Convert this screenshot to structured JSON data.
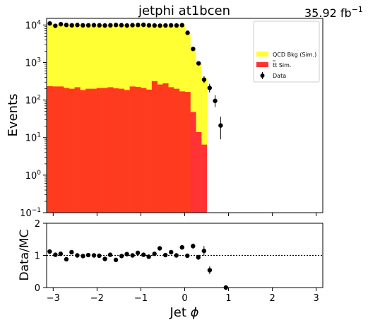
{
  "title": "jetphi  at1bcen",
  "lumi_label": "35.92 fb",
  "lumi_exp": "−1",
  "chart_data": [
    {
      "type": "bar",
      "subtype": "stacked-histogram",
      "ylabel": "Events",
      "yscale": "log",
      "xlim": [
        -3.15,
        3.15
      ],
      "ylim": [
        0.1,
        15000
      ],
      "x_ticks": [
        "−3",
        "−2",
        "−1",
        "0",
        "1",
        "2",
        "3"
      ],
      "y_ticks": [
        {
          "base": "10",
          "exp": "−1",
          "value": 0.1
        },
        {
          "base": "10",
          "exp": "0",
          "value": 1
        },
        {
          "base": "10",
          "exp": "1",
          "value": 10
        },
        {
          "base": "10",
          "exp": "2",
          "value": 100
        },
        {
          "base": "10",
          "exp": "3",
          "value": 1000
        },
        {
          "base": "10",
          "exp": "4",
          "value": 10000
        }
      ],
      "bin_start": -3.14,
      "bin_width": 0.1257,
      "legend": {
        "placement": "top-right",
        "entries": [
          {
            "key": "qcd",
            "label": "QCD Bkg (Sim.)",
            "color": "#ffff33"
          },
          {
            "key": "ttbar",
            "label_top": "t",
            "label_rest": "t Sim.",
            "color": "#ff3333"
          },
          {
            "key": "data",
            "label": "Data",
            "color": "#000000"
          }
        ]
      },
      "series": [
        {
          "key": "ttbar",
          "name": "t t Sim.",
          "color": "#ff3b1f",
          "values": [
            235,
            230,
            230,
            210,
            200,
            220,
            185,
            200,
            200,
            210,
            210,
            220,
            205,
            200,
            185,
            230,
            225,
            210,
            190,
            320,
            260,
            280,
            220,
            200,
            170,
            165,
            48,
            14,
            6.5,
            0,
            0,
            0,
            0,
            0,
            0,
            0,
            0,
            0,
            0,
            0,
            0,
            0,
            0,
            0,
            0,
            0,
            0,
            0,
            0,
            0
          ]
        },
        {
          "key": "qcd_total",
          "name": "QCD Bkg (Sim.)",
          "color": "#ffff33",
          "values": [
            10500,
            10400,
            10500,
            10400,
            10400,
            10400,
            10300,
            10300,
            10200,
            10200,
            10200,
            10400,
            10300,
            10300,
            10200,
            10200,
            10300,
            10200,
            10100,
            10200,
            10100,
            10000,
            10000,
            10000,
            10000,
            6000,
            2300,
            950,
            380,
            0,
            0,
            0,
            0,
            0,
            0,
            0,
            0,
            0,
            0,
            0,
            0,
            0,
            0,
            0,
            0,
            0,
            0,
            0,
            0,
            0
          ]
        },
        {
          "key": "data",
          "name": "Data",
          "color": "#000000",
          "values": [
            11000,
            9500,
            10500,
            10000,
            9800,
            10000,
            9800,
            9800,
            9900,
            9800,
            9700,
            9800,
            10000,
            9900,
            9700,
            9900,
            10000,
            10100,
            9800,
            9700,
            9600,
            9700,
            9800,
            9700,
            9900,
            6200,
            2300,
            950,
            350,
            210,
            95,
            21
          ],
          "errors_up": [
            0,
            0,
            0,
            0,
            0,
            0,
            0,
            0,
            0,
            0,
            0,
            0,
            0,
            0,
            0,
            0,
            0,
            0,
            0,
            0,
            0,
            0,
            0,
            0,
            0,
            0,
            0,
            0,
            80,
            60,
            40,
            15
          ],
          "errors_down": [
            0,
            0,
            0,
            0,
            0,
            0,
            0,
            0,
            0,
            0,
            0,
            0,
            0,
            0,
            0,
            0,
            0,
            0,
            0,
            0,
            0,
            0,
            0,
            0,
            0,
            0,
            0,
            0,
            70,
            50,
            30,
            12
          ]
        }
      ]
    },
    {
      "type": "scatter",
      "xlabel_main": "Jet ",
      "xlabel_sym": "ϕ",
      "ylabel": "Data/MC",
      "xlim": [
        -3.15,
        3.15
      ],
      "ylim": [
        0,
        2
      ],
      "y_ticks": [
        "0",
        "1",
        "2"
      ],
      "x_ticks": [
        "−3",
        "−2",
        "−1",
        "0",
        "1",
        "2",
        "3"
      ],
      "reference_line": 1,
      "x": [
        -3.08,
        -2.95,
        -2.83,
        -2.7,
        -2.58,
        -2.45,
        -2.32,
        -2.2,
        -2.07,
        -1.95,
        -1.82,
        -1.7,
        -1.57,
        -1.44,
        -1.32,
        -1.19,
        -1.07,
        -0.94,
        -0.82,
        -0.69,
        -0.57,
        -0.44,
        -0.31,
        -0.19,
        -0.06,
        0.06,
        0.19,
        0.31,
        0.44,
        0.57,
        0.94
      ],
      "values": [
        1.12,
        1.02,
        1.05,
        0.88,
        1.1,
        1.0,
        0.98,
        1.01,
        1.0,
        0.99,
        0.89,
        1.02,
        0.86,
        0.98,
        1.04,
        1.0,
        1.08,
        1.02,
        0.96,
        1.05,
        1.22,
        1.01,
        1.1,
        1.0,
        1.25,
        0.99,
        1.29,
        0.94,
        1.14,
        0.54,
        0.0
      ],
      "errors": [
        0,
        0,
        0,
        0,
        0,
        0,
        0,
        0,
        0,
        0,
        0,
        0,
        0,
        0,
        0,
        0,
        0,
        0,
        0,
        0,
        0,
        0,
        0,
        0,
        0,
        0,
        0.08,
        0.08,
        0.15,
        0.12,
        0
      ]
    }
  ]
}
